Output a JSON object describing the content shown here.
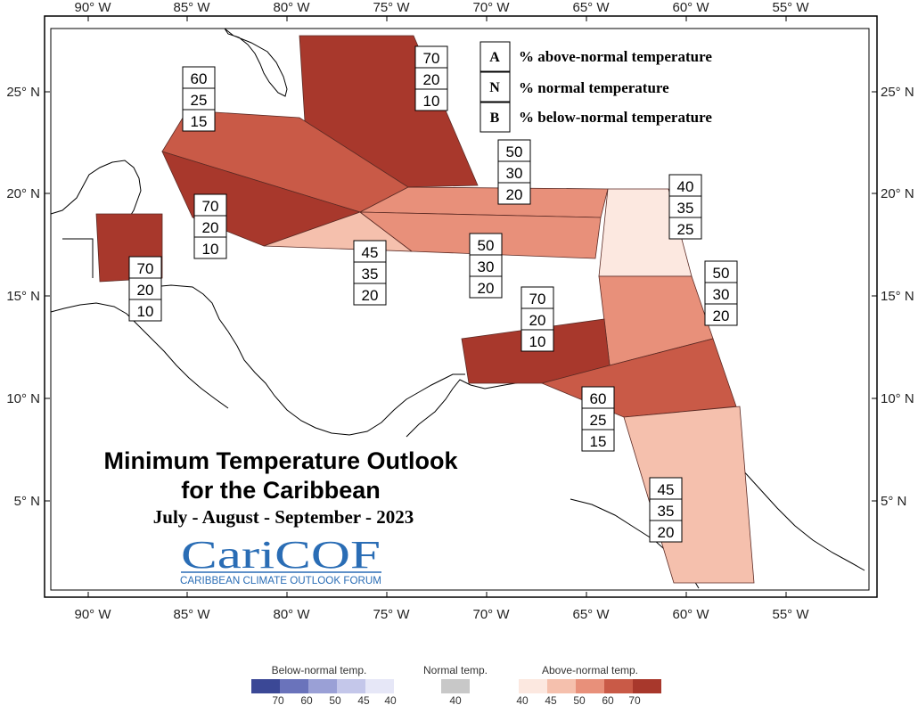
{
  "title_line1": "Minimum Temperature Outlook",
  "title_line2": "for the Caribbean",
  "subtitle": "July - August - September - 2023",
  "logo": {
    "name": "CariCOF",
    "tagline": "CARIBBEAN CLIMATE OUTLOOK FORUM"
  },
  "axes": {
    "lon_labels": [
      "90° W",
      "85° W",
      "80° W",
      "75° W",
      "70° W",
      "65° W",
      "60° W",
      "55° W"
    ],
    "lat_labels_left": [
      "25° N",
      "20° N",
      "15° N",
      "10° N",
      "5° N"
    ],
    "lat_labels_right": [
      "25° N",
      "20° N",
      "15° N",
      "10° N",
      "5° N"
    ]
  },
  "map_legend": [
    {
      "letter": "A",
      "text": "% above-normal temperature"
    },
    {
      "letter": "N",
      "text": "% normal temperature"
    },
    {
      "letter": "B",
      "text": "% below-normal temperature"
    }
  ],
  "colors": {
    "above_40": "#fce8e0",
    "above_45": "#f5c0ad",
    "above_50": "#e8907a",
    "above_60": "#c95a47",
    "above_70": "#a8382c",
    "below_70": "#3b4896",
    "below_60": "#6a73bb",
    "below_50": "#9aa0d6",
    "below_45": "#c4c7ea",
    "below_40": "#e6e7f7",
    "normal_40": "#c8c8c8"
  },
  "regions": [
    {
      "name": "bahamas",
      "A": "70",
      "N": "20",
      "B": "10"
    },
    {
      "name": "cuba-west",
      "A": "60",
      "N": "25",
      "B": "15"
    },
    {
      "name": "cuba-south",
      "A": "70",
      "N": "20",
      "B": "10"
    },
    {
      "name": "belize",
      "A": "70",
      "N": "20",
      "B": "10"
    },
    {
      "name": "jamaica",
      "A": "45",
      "N": "35",
      "B": "20"
    },
    {
      "name": "hispaniola-north",
      "A": "50",
      "N": "30",
      "B": "20"
    },
    {
      "name": "hispaniola-south",
      "A": "50",
      "N": "30",
      "B": "20"
    },
    {
      "name": "leeward-islands",
      "A": "40",
      "N": "35",
      "B": "25"
    },
    {
      "name": "windward-islands",
      "A": "50",
      "N": "30",
      "B": "20"
    },
    {
      "name": "abc-islands",
      "A": "70",
      "N": "20",
      "B": "10"
    },
    {
      "name": "trinidad",
      "A": "60",
      "N": "25",
      "B": "15"
    },
    {
      "name": "guianas",
      "A": "45",
      "N": "35",
      "B": "20"
    }
  ],
  "key": {
    "below_title": "Below-normal temp.",
    "normal_title": "Normal temp.",
    "above_title": "Above-normal temp.",
    "below_ticks": [
      "70",
      "60",
      "50",
      "45",
      "40"
    ],
    "normal_ticks": [
      "40"
    ],
    "above_ticks": [
      "40",
      "45",
      "50",
      "60",
      "70"
    ]
  }
}
